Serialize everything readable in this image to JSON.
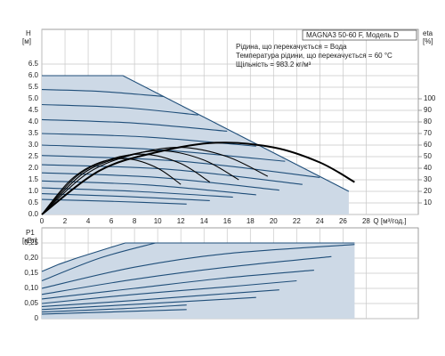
{
  "chart_data": [
    {
      "type": "line",
      "title": "MAGNA3 50-60 F, Модель D",
      "annotations": [
        "Рідина, що перекачується = Вода",
        "Температура рідини, що перекачується = 60 °C",
        "Щільність = 983.2 кг/м³"
      ],
      "ylabel": "H",
      "yunit": "[м]",
      "y2label": "eta",
      "y2unit": "[%]",
      "xlabel": "Q [м³/год.]",
      "xlim": [
        0,
        32.5
      ],
      "xticks": [
        0,
        2,
        4,
        6,
        8,
        10,
        12,
        14,
        16,
        18,
        20,
        22,
        24,
        26,
        28
      ],
      "ylim": [
        0,
        8
      ],
      "yticks": [
        {
          "value": 0,
          "label": "0.0"
        },
        0.5,
        {
          "value": 1,
          "label": "1.0"
        },
        1.5,
        {
          "value": 2,
          "label": "2.0"
        },
        2.5,
        {
          "value": 3,
          "label": "3.0"
        },
        3.5,
        {
          "value": 4,
          "label": "4.0"
        },
        4.5,
        {
          "value": 5,
          "label": "5.0"
        },
        5.5,
        {
          "value": 6,
          "label": "6.0"
        },
        6.5
      ],
      "y2lim": [
        0,
        160
      ],
      "y2ticks": [
        10,
        20,
        30,
        40,
        50,
        60,
        70,
        80,
        90,
        100
      ],
      "grid": true,
      "series": [
        {
          "color": "#1f4e79",
          "fill": "#cdd9e6",
          "smooth": false,
          "x": [
            0,
            7,
            26.5
          ],
          "values": [
            6,
            6,
            1
          ]
        },
        {
          "color": "#1f4e79",
          "x": [
            0,
            5,
            10.5
          ],
          "values": [
            5.4,
            5.32,
            5.1
          ]
        },
        {
          "color": "#1f4e79",
          "x": [
            0,
            7,
            13.5
          ],
          "values": [
            4.75,
            4.62,
            4.3
          ]
        },
        {
          "color": "#1f4e79",
          "x": [
            0,
            8,
            16
          ],
          "values": [
            4.1,
            3.95,
            3.6
          ]
        },
        {
          "color": "#1f4e79",
          "x": [
            0,
            9,
            18.5
          ],
          "values": [
            3.5,
            3.35,
            2.95
          ]
        },
        {
          "color": "#1f4e79",
          "x": [
            0,
            10,
            21
          ],
          "values": [
            3.0,
            2.8,
            2.3
          ]
        },
        {
          "color": "#1f4e79",
          "x": [
            0,
            12,
            24
          ],
          "values": [
            2.55,
            2.3,
            1.6
          ]
        },
        {
          "color": "#1f4e79",
          "x": [
            0,
            11,
            22.5
          ],
          "values": [
            2.15,
            1.95,
            1.3
          ]
        },
        {
          "color": "#1f4e79",
          "x": [
            0,
            10,
            20.5
          ],
          "values": [
            1.8,
            1.6,
            1.05
          ]
        },
        {
          "color": "#1f4e79",
          "x": [
            0,
            9,
            18.5
          ],
          "values": [
            1.45,
            1.28,
            0.85
          ]
        },
        {
          "color": "#1f4e79",
          "x": [
            0,
            8,
            16.5
          ],
          "values": [
            1.15,
            1.0,
            0.75
          ]
        },
        {
          "color": "#1f4e79",
          "x": [
            0,
            7,
            14.5
          ],
          "values": [
            0.9,
            0.78,
            0.6
          ]
        },
        {
          "color": "#1f4e79",
          "x": [
            0,
            6,
            12.5
          ],
          "values": [
            0.65,
            0.57,
            0.45
          ]
        },
        {
          "color": "#000000",
          "axis": "y2",
          "width": 2,
          "x": [
            0,
            5,
            10,
            15,
            20,
            24,
            27
          ],
          "values": [
            0,
            38,
            54,
            62,
            58,
            45,
            28
          ]
        },
        {
          "color": "#000000",
          "axis": "y2",
          "x": [
            0,
            4,
            8,
            12,
            16,
            19.5
          ],
          "values": [
            0,
            36,
            52,
            58,
            50,
            33
          ]
        },
        {
          "color": "#000000",
          "axis": "y2",
          "x": [
            0,
            3.5,
            7,
            10.5,
            14,
            17
          ],
          "values": [
            0,
            35,
            50,
            55,
            47,
            30
          ]
        },
        {
          "color": "#000000",
          "axis": "y2",
          "x": [
            0,
            3,
            6,
            9,
            12,
            14.5
          ],
          "values": [
            0,
            33,
            48,
            52,
            44,
            28
          ]
        },
        {
          "color": "#000000",
          "axis": "y2",
          "x": [
            0,
            2.5,
            5,
            7.5,
            10,
            12
          ],
          "values": [
            0,
            30,
            45,
            48,
            40,
            26
          ]
        }
      ]
    },
    {
      "type": "line",
      "ylabel": "P1",
      "yunit": "[кВт]",
      "xlim": [
        0,
        32.5
      ],
      "ylim": [
        0,
        0.3
      ],
      "yticks": [
        0,
        {
          "value": 0.05,
          "label": "0,05"
        },
        {
          "value": 0.1,
          "label": "0,10"
        },
        {
          "value": 0.15,
          "label": "0,15"
        },
        {
          "value": 0.2,
          "label": "0,20"
        },
        {
          "value": 0.25,
          "label": "0,25"
        }
      ],
      "grid": true,
      "series": [
        {
          "color": "#1f4e79",
          "fill": "#cdd9e6",
          "smooth": false,
          "x": [
            0,
            1.5,
            3,
            4.5,
            6,
            7.2,
            27
          ],
          "values": [
            0.156,
            0.18,
            0.2,
            0.218,
            0.236,
            0.25,
            0.25
          ]
        },
        {
          "color": "#1f4e79",
          "x": [
            0,
            5,
            9.8
          ],
          "values": [
            0.125,
            0.2,
            0.25
          ]
        },
        {
          "color": "#1f4e79",
          "x": [
            0,
            8,
            16,
            27
          ],
          "values": [
            0.1,
            0.17,
            0.215,
            0.245
          ]
        },
        {
          "color": "#1f4e79",
          "x": [
            0,
            8,
            16,
            25
          ],
          "values": [
            0.08,
            0.13,
            0.17,
            0.205
          ]
        },
        {
          "color": "#1f4e79",
          "x": [
            0,
            8,
            16,
            23.5
          ],
          "values": [
            0.065,
            0.1,
            0.135,
            0.16
          ]
        },
        {
          "color": "#1f4e79",
          "x": [
            0,
            8,
            16,
            22
          ],
          "values": [
            0.05,
            0.08,
            0.105,
            0.125
          ]
        },
        {
          "color": "#1f4e79",
          "x": [
            0,
            8,
            15,
            20.5
          ],
          "values": [
            0.04,
            0.06,
            0.08,
            0.095
          ]
        },
        {
          "color": "#1f4e79",
          "x": [
            0,
            7,
            14,
            18.5
          ],
          "values": [
            0.03,
            0.045,
            0.06,
            0.07
          ]
        },
        {
          "color": "#1f4e79",
          "x": [
            0,
            7,
            12.5
          ],
          "values": [
            0.022,
            0.033,
            0.045
          ]
        },
        {
          "color": "#1f4e79",
          "x": [
            0,
            6,
            12.5
          ],
          "values": [
            0.015,
            0.022,
            0.03
          ]
        }
      ]
    }
  ]
}
